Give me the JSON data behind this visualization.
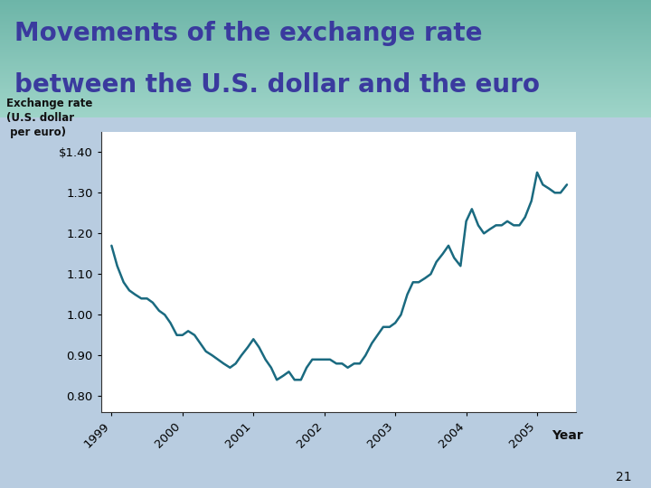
{
  "title_line1": "Movements of the exchange rate",
  "title_line2": "between the U.S. dollar and the euro",
  "title_color": "#3a3a9e",
  "title_bg_color_top": "#6db5a8",
  "title_bg_color_bottom": "#9ed4c8",
  "chart_bg_color": "#ffffff",
  "outer_bg_color": "#b8cce0",
  "line_color": "#1a6a80",
  "ylabel_line1": "Exchange rate",
  "ylabel_line2": "(U.S. dollar",
  "ylabel_line3": " per euro)",
  "xlabel": "Year",
  "page_number": "21",
  "yticks": [
    0.8,
    0.9,
    1.0,
    1.1,
    1.2,
    1.3,
    1.4
  ],
  "ytick_labels": [
    "0.80",
    "0.90",
    "1.00",
    "1.10",
    "1.20",
    "1.30",
    "$1.40"
  ],
  "ylim": [
    0.76,
    1.45
  ],
  "x_data": [
    1999.0,
    1999.08,
    1999.17,
    1999.25,
    1999.33,
    1999.42,
    1999.5,
    1999.58,
    1999.67,
    1999.75,
    1999.83,
    1999.92,
    2000.0,
    2000.08,
    2000.17,
    2000.25,
    2000.33,
    2000.42,
    2000.5,
    2000.58,
    2000.67,
    2000.75,
    2000.83,
    2000.92,
    2001.0,
    2001.08,
    2001.17,
    2001.25,
    2001.33,
    2001.42,
    2001.5,
    2001.58,
    2001.67,
    2001.75,
    2001.83,
    2001.92,
    2002.0,
    2002.08,
    2002.17,
    2002.25,
    2002.33,
    2002.42,
    2002.5,
    2002.58,
    2002.67,
    2002.75,
    2002.83,
    2002.92,
    2003.0,
    2003.08,
    2003.17,
    2003.25,
    2003.33,
    2003.42,
    2003.5,
    2003.58,
    2003.67,
    2003.75,
    2003.83,
    2003.92,
    2004.0,
    2004.08,
    2004.17,
    2004.25,
    2004.33,
    2004.42,
    2004.5,
    2004.58,
    2004.67,
    2004.75,
    2004.83,
    2004.92,
    2005.0,
    2005.08,
    2005.17,
    2005.25,
    2005.33,
    2005.42
  ],
  "y_data": [
    1.17,
    1.12,
    1.08,
    1.06,
    1.05,
    1.04,
    1.04,
    1.03,
    1.01,
    1.0,
    0.98,
    0.95,
    0.95,
    0.96,
    0.95,
    0.93,
    0.91,
    0.9,
    0.89,
    0.88,
    0.87,
    0.88,
    0.9,
    0.92,
    0.94,
    0.92,
    0.89,
    0.87,
    0.84,
    0.85,
    0.86,
    0.84,
    0.84,
    0.87,
    0.89,
    0.89,
    0.89,
    0.89,
    0.88,
    0.88,
    0.87,
    0.88,
    0.88,
    0.9,
    0.93,
    0.95,
    0.97,
    0.97,
    0.98,
    1.0,
    1.05,
    1.08,
    1.08,
    1.09,
    1.1,
    1.13,
    1.15,
    1.17,
    1.14,
    1.12,
    1.23,
    1.26,
    1.22,
    1.2,
    1.21,
    1.22,
    1.22,
    1.23,
    1.22,
    1.22,
    1.24,
    1.28,
    1.35,
    1.32,
    1.31,
    1.3,
    1.3,
    1.32
  ],
  "xticks": [
    1999,
    2000,
    2001,
    2002,
    2003,
    2004,
    2005
  ],
  "xlim": [
    1998.85,
    2005.55
  ]
}
